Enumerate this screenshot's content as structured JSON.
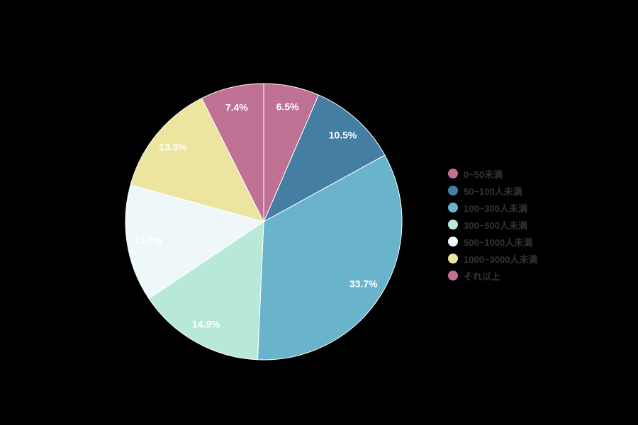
{
  "chart_data": {
    "type": "pie",
    "title": "",
    "categories": [
      "0~50未満",
      "50~100人未満",
      "100~300人未満",
      "300~500人未満",
      "500~1000人未満",
      "1000~3000人未満",
      "それ以上"
    ],
    "values": [
      6.5,
      10.5,
      33.7,
      14.9,
      13.7,
      13.3,
      7.4
    ],
    "labels": [
      "6.5%",
      "10.5%",
      "33.7%",
      "14.9%",
      "13.7%",
      "13.3%",
      "7.4%"
    ],
    "colors": [
      "#bf7194",
      "#457ea3",
      "#6ab4cb",
      "#b8e8d8",
      "#eef8fa",
      "#ece5a0",
      "#bf7194"
    ],
    "start_angle_deg": 0,
    "direction": "clockwise",
    "legend_position": "right",
    "center": [
      372,
      313
    ],
    "radius": 195
  },
  "legend": {
    "items": [
      {
        "label": "0~50未満",
        "color": "#bf7194"
      },
      {
        "label": "50~100人未満",
        "color": "#457ea3"
      },
      {
        "label": "100~300人未満",
        "color": "#6ab4cb"
      },
      {
        "label": "300~500人未満",
        "color": "#b8e8d8"
      },
      {
        "label": "500~1000人未満",
        "color": "#eef8fa"
      },
      {
        "label": "1000~3000人未満",
        "color": "#ece5a0"
      },
      {
        "label": "それ以上",
        "color": "#bf7194"
      }
    ]
  }
}
